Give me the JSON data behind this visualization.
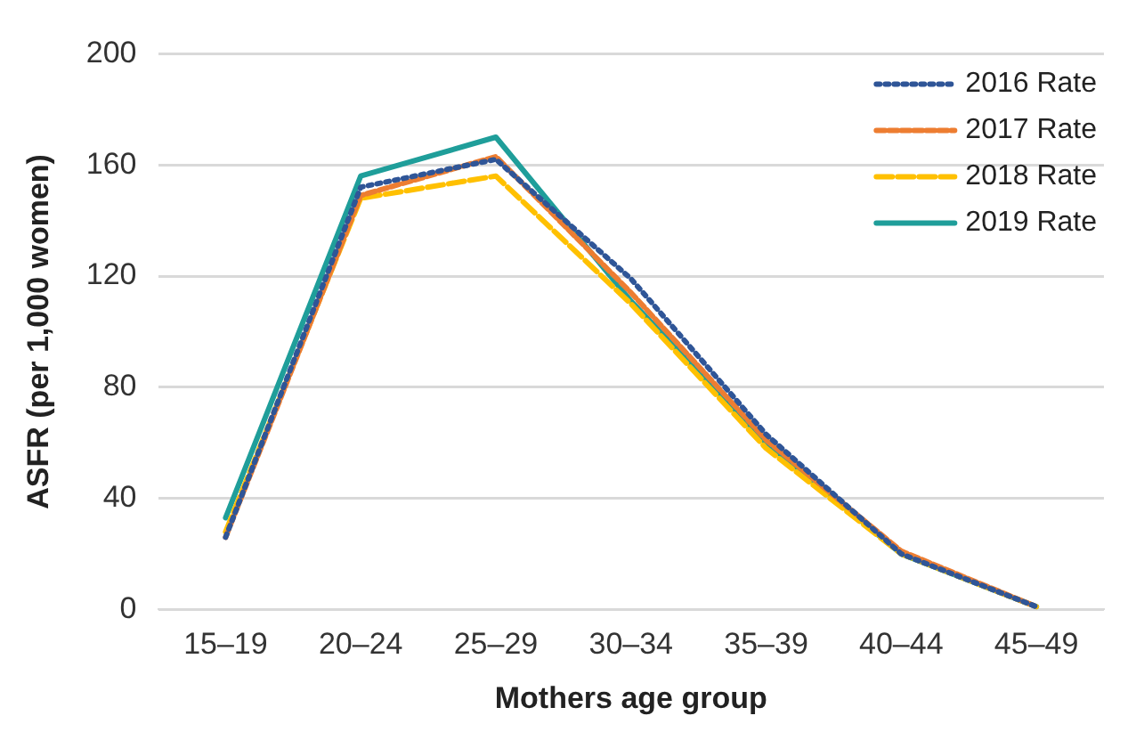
{
  "chart_data": {
    "type": "line",
    "xlabel": "Mothers age group",
    "ylabel": "ASFR (per 1,000 women)",
    "categories": [
      "15–19",
      "20–24",
      "25–29",
      "30–34",
      "35–39",
      "40–44",
      "45–49"
    ],
    "series": [
      {
        "name": "2016 Rate",
        "color": "#2f5597",
        "line_style": "dotted",
        "values": [
          26,
          152,
          162,
          119,
          63,
          20,
          1
        ]
      },
      {
        "name": "2017 Rate",
        "color": "#ed7d31",
        "line_style": "dashed",
        "values": [
          26,
          149,
          163,
          114,
          61,
          21,
          1
        ]
      },
      {
        "name": "2018 Rate",
        "color": "#ffc000",
        "line_style": "dashed",
        "values": [
          28,
          148,
          156,
          110,
          58,
          20,
          1
        ]
      },
      {
        "name": "2019 Rate",
        "color": "#1f9e9a",
        "line_style": "solid",
        "values": [
          33,
          156,
          170,
          111,
          60,
          20,
          1
        ]
      }
    ],
    "ylim": [
      0,
      200
    ],
    "yticks": [
      0,
      40,
      80,
      120,
      160,
      200
    ],
    "grid": "y",
    "legend": "top right",
    "marker": "none"
  }
}
